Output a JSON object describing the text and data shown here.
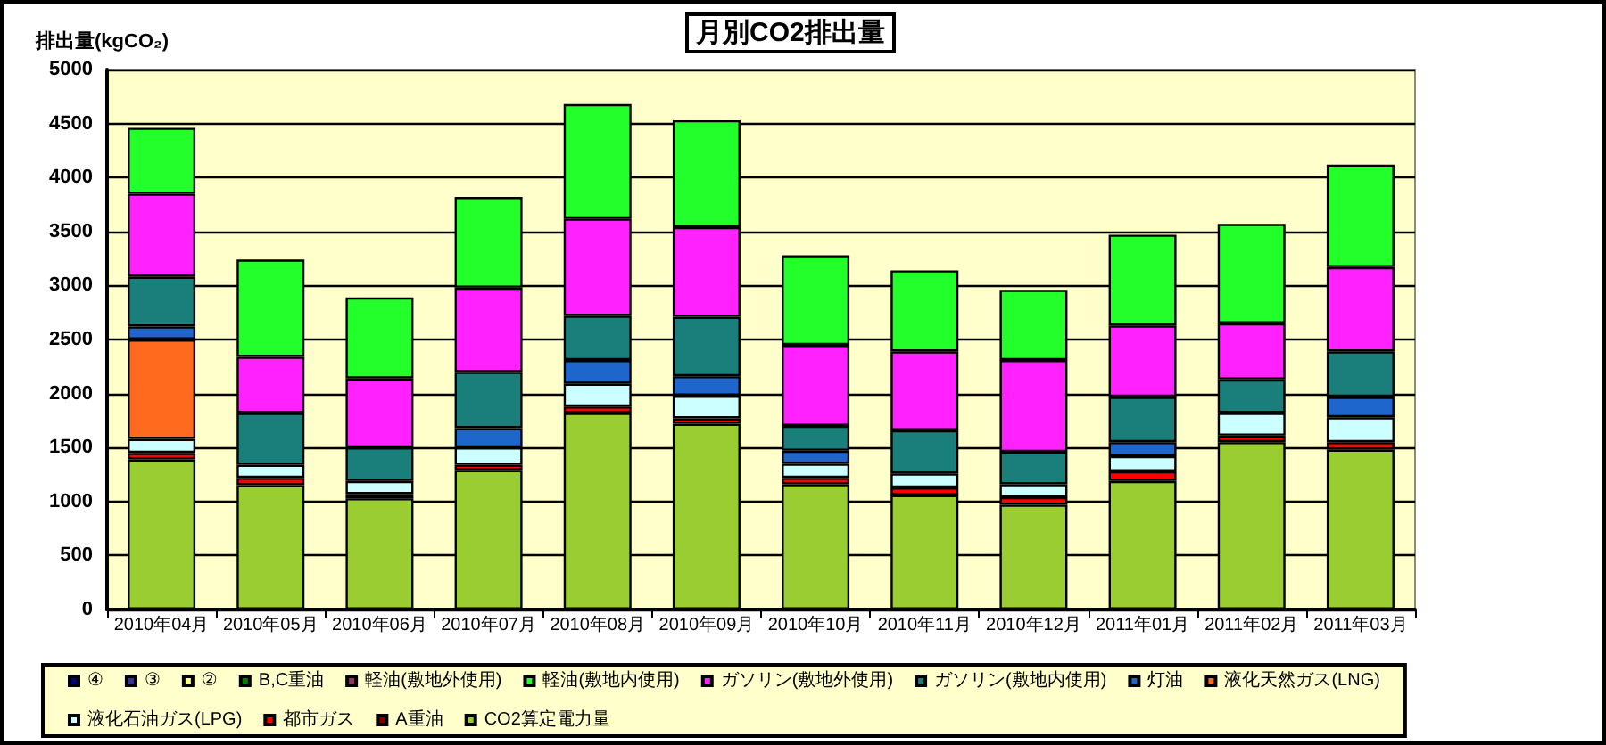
{
  "chart_data": {
    "type": "bar",
    "title": "月別CO2排出量",
    "ylabel": "排出量(kgCO₂)",
    "stacked": true,
    "grid": "y",
    "legend": "bottom",
    "categories": [
      "2010年04月",
      "2010年05月",
      "2010年06月",
      "2010年07月",
      "2010年08月",
      "2010年09月",
      "2010年10月",
      "2010年11月",
      "2010年12月",
      "2011年01月",
      "2011年02月",
      "2011年03月"
    ],
    "ylim": [
      0,
      5000
    ],
    "yticks": [
      0,
      500,
      1000,
      1500,
      2000,
      2500,
      3000,
      3500,
      4000,
      4500,
      5000
    ],
    "series": [
      {
        "name": "CO2算定電力量",
        "color": "#9acd32",
        "values": [
          1390,
          1150,
          1030,
          1290,
          1820,
          1720,
          1160,
          1060,
          970,
          1190,
          1550,
          1480
        ]
      },
      {
        "name": "A重油",
        "color": "#800000",
        "values": [
          0,
          0,
          0,
          0,
          0,
          0,
          0,
          0,
          0,
          0,
          0,
          0
        ]
      },
      {
        "name": "都市ガス",
        "color": "#ff0000",
        "values": [
          60,
          70,
          40,
          50,
          60,
          50,
          60,
          70,
          70,
          90,
          60,
          70
        ]
      },
      {
        "name": "液化石油ガス(LPG)",
        "color": "#ccffff",
        "values": [
          130,
          120,
          120,
          160,
          210,
          210,
          130,
          130,
          120,
          140,
          210,
          230
        ]
      },
      {
        "name": "液化天然ガス(LNG)",
        "color": "#ff6a1f",
        "values": [
          920,
          0,
          0,
          0,
          0,
          0,
          0,
          0,
          0,
          0,
          0,
          0
        ]
      },
      {
        "name": "灯油",
        "color": "#1f66cc",
        "values": [
          120,
          0,
          0,
          180,
          220,
          180,
          120,
          0,
          0,
          130,
          0,
          190
        ]
      },
      {
        "name": "ガソリン(敷地内使用)",
        "color": "#1a7f7a",
        "values": [
          460,
          480,
          310,
          520,
          410,
          550,
          230,
          400,
          300,
          420,
          310,
          420
        ]
      },
      {
        "name": "ガソリン(敷地外使用)",
        "color": "#ff22ff",
        "values": [
          770,
          520,
          640,
          780,
          900,
          830,
          750,
          730,
          850,
          660,
          520,
          780
        ]
      },
      {
        "name": "軽油(敷地内使用)",
        "color": "#22ff2a",
        "values": [
          610,
          900,
          750,
          840,
          1060,
          990,
          830,
          750,
          650,
          840,
          920,
          950
        ]
      },
      {
        "name": "軽油(敷地外使用)",
        "color": "#993366",
        "values": [
          0,
          0,
          0,
          0,
          0,
          0,
          0,
          0,
          0,
          0,
          0,
          0
        ]
      },
      {
        "name": "B,C重油",
        "color": "#008000",
        "values": [
          0,
          0,
          0,
          0,
          0,
          0,
          0,
          0,
          0,
          0,
          0,
          0
        ]
      },
      {
        "name": "②",
        "color": "#ffff99",
        "values": [
          0,
          0,
          0,
          0,
          0,
          0,
          0,
          0,
          0,
          0,
          0,
          0
        ]
      },
      {
        "name": "③",
        "color": "#333399",
        "values": [
          0,
          0,
          0,
          0,
          0,
          0,
          0,
          0,
          0,
          0,
          0,
          0
        ]
      },
      {
        "name": "④",
        "color": "#000080",
        "values": [
          0,
          0,
          0,
          0,
          0,
          0,
          0,
          0,
          0,
          0,
          0,
          0
        ]
      }
    ]
  }
}
